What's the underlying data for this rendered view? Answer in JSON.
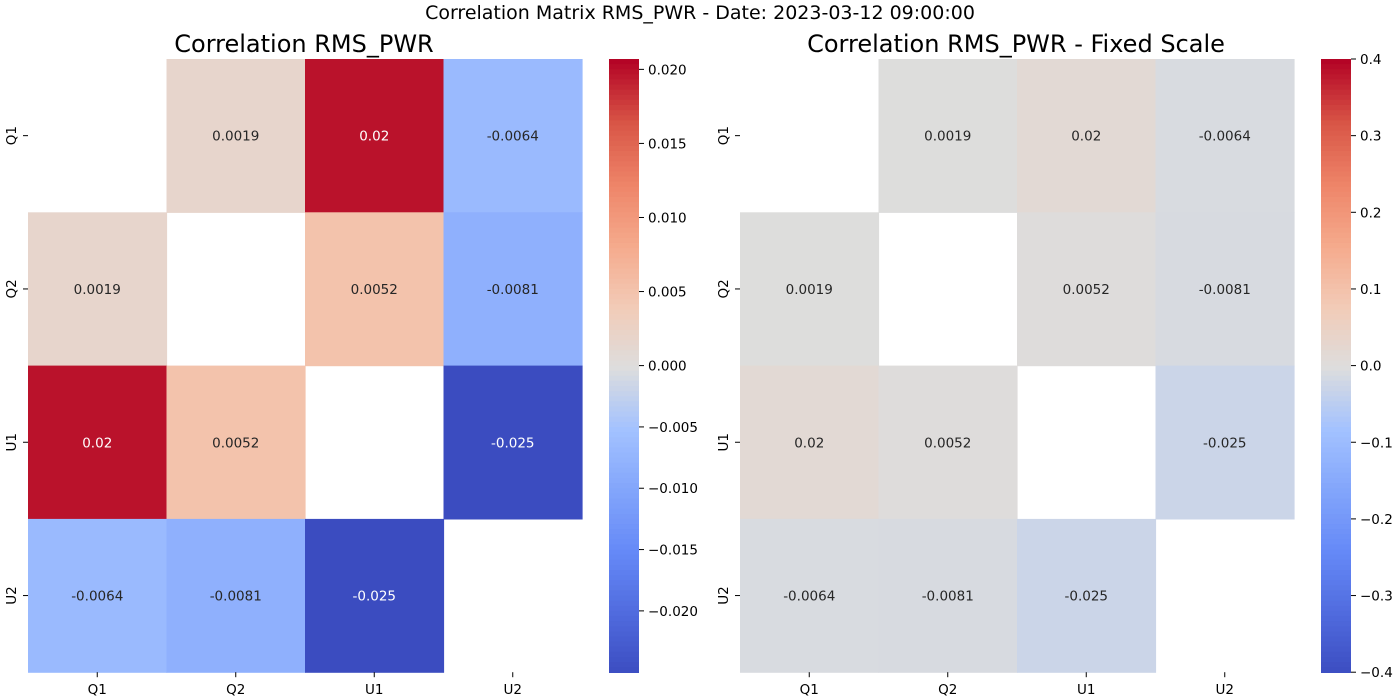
{
  "figure": {
    "suptitle": "Correlation Matrix RMS_PWR - Date: 2023-03-12 09:00:00"
  },
  "chart_data": [
    {
      "type": "heatmap",
      "title": "Correlation RMS_PWR",
      "rows": [
        "Q1",
        "Q2",
        "U1",
        "U2"
      ],
      "cols": [
        "Q1",
        "Q2",
        "U1",
        "U2"
      ],
      "values": [
        [
          null,
          0.0019,
          0.02,
          -0.0064
        ],
        [
          0.0019,
          null,
          0.0052,
          -0.0081
        ],
        [
          0.02,
          0.0052,
          null,
          -0.025
        ],
        [
          -0.0064,
          -0.0081,
          -0.025,
          null
        ]
      ],
      "colormap": "coolwarm",
      "vmin": -0.025,
      "vmax": 0.0207,
      "center": 0,
      "colorbar_ticks": [
        "0.020",
        "0.015",
        "0.010",
        "0.005",
        "0.000",
        "−0.005",
        "−0.010",
        "−0.015",
        "−0.020"
      ],
      "diagonal_masked": true
    },
    {
      "type": "heatmap",
      "title": "Correlation RMS_PWR - Fixed Scale",
      "rows": [
        "Q1",
        "Q2",
        "U1",
        "U2"
      ],
      "cols": [
        "Q1",
        "Q2",
        "U1",
        "U2"
      ],
      "values": [
        [
          null,
          0.0019,
          0.02,
          -0.0064
        ],
        [
          0.0019,
          null,
          0.0052,
          -0.0081
        ],
        [
          0.02,
          0.0052,
          null,
          -0.025
        ],
        [
          -0.0064,
          -0.0081,
          -0.025,
          null
        ]
      ],
      "colormap": "coolwarm",
      "vmin": -0.4,
      "vmax": 0.4,
      "center": 0,
      "colorbar_ticks": [
        "0.4",
        "0.3",
        "0.2",
        "0.1",
        "0.0",
        "−0.1",
        "−0.2",
        "−0.3",
        "−0.4"
      ],
      "diagonal_masked": true
    }
  ]
}
